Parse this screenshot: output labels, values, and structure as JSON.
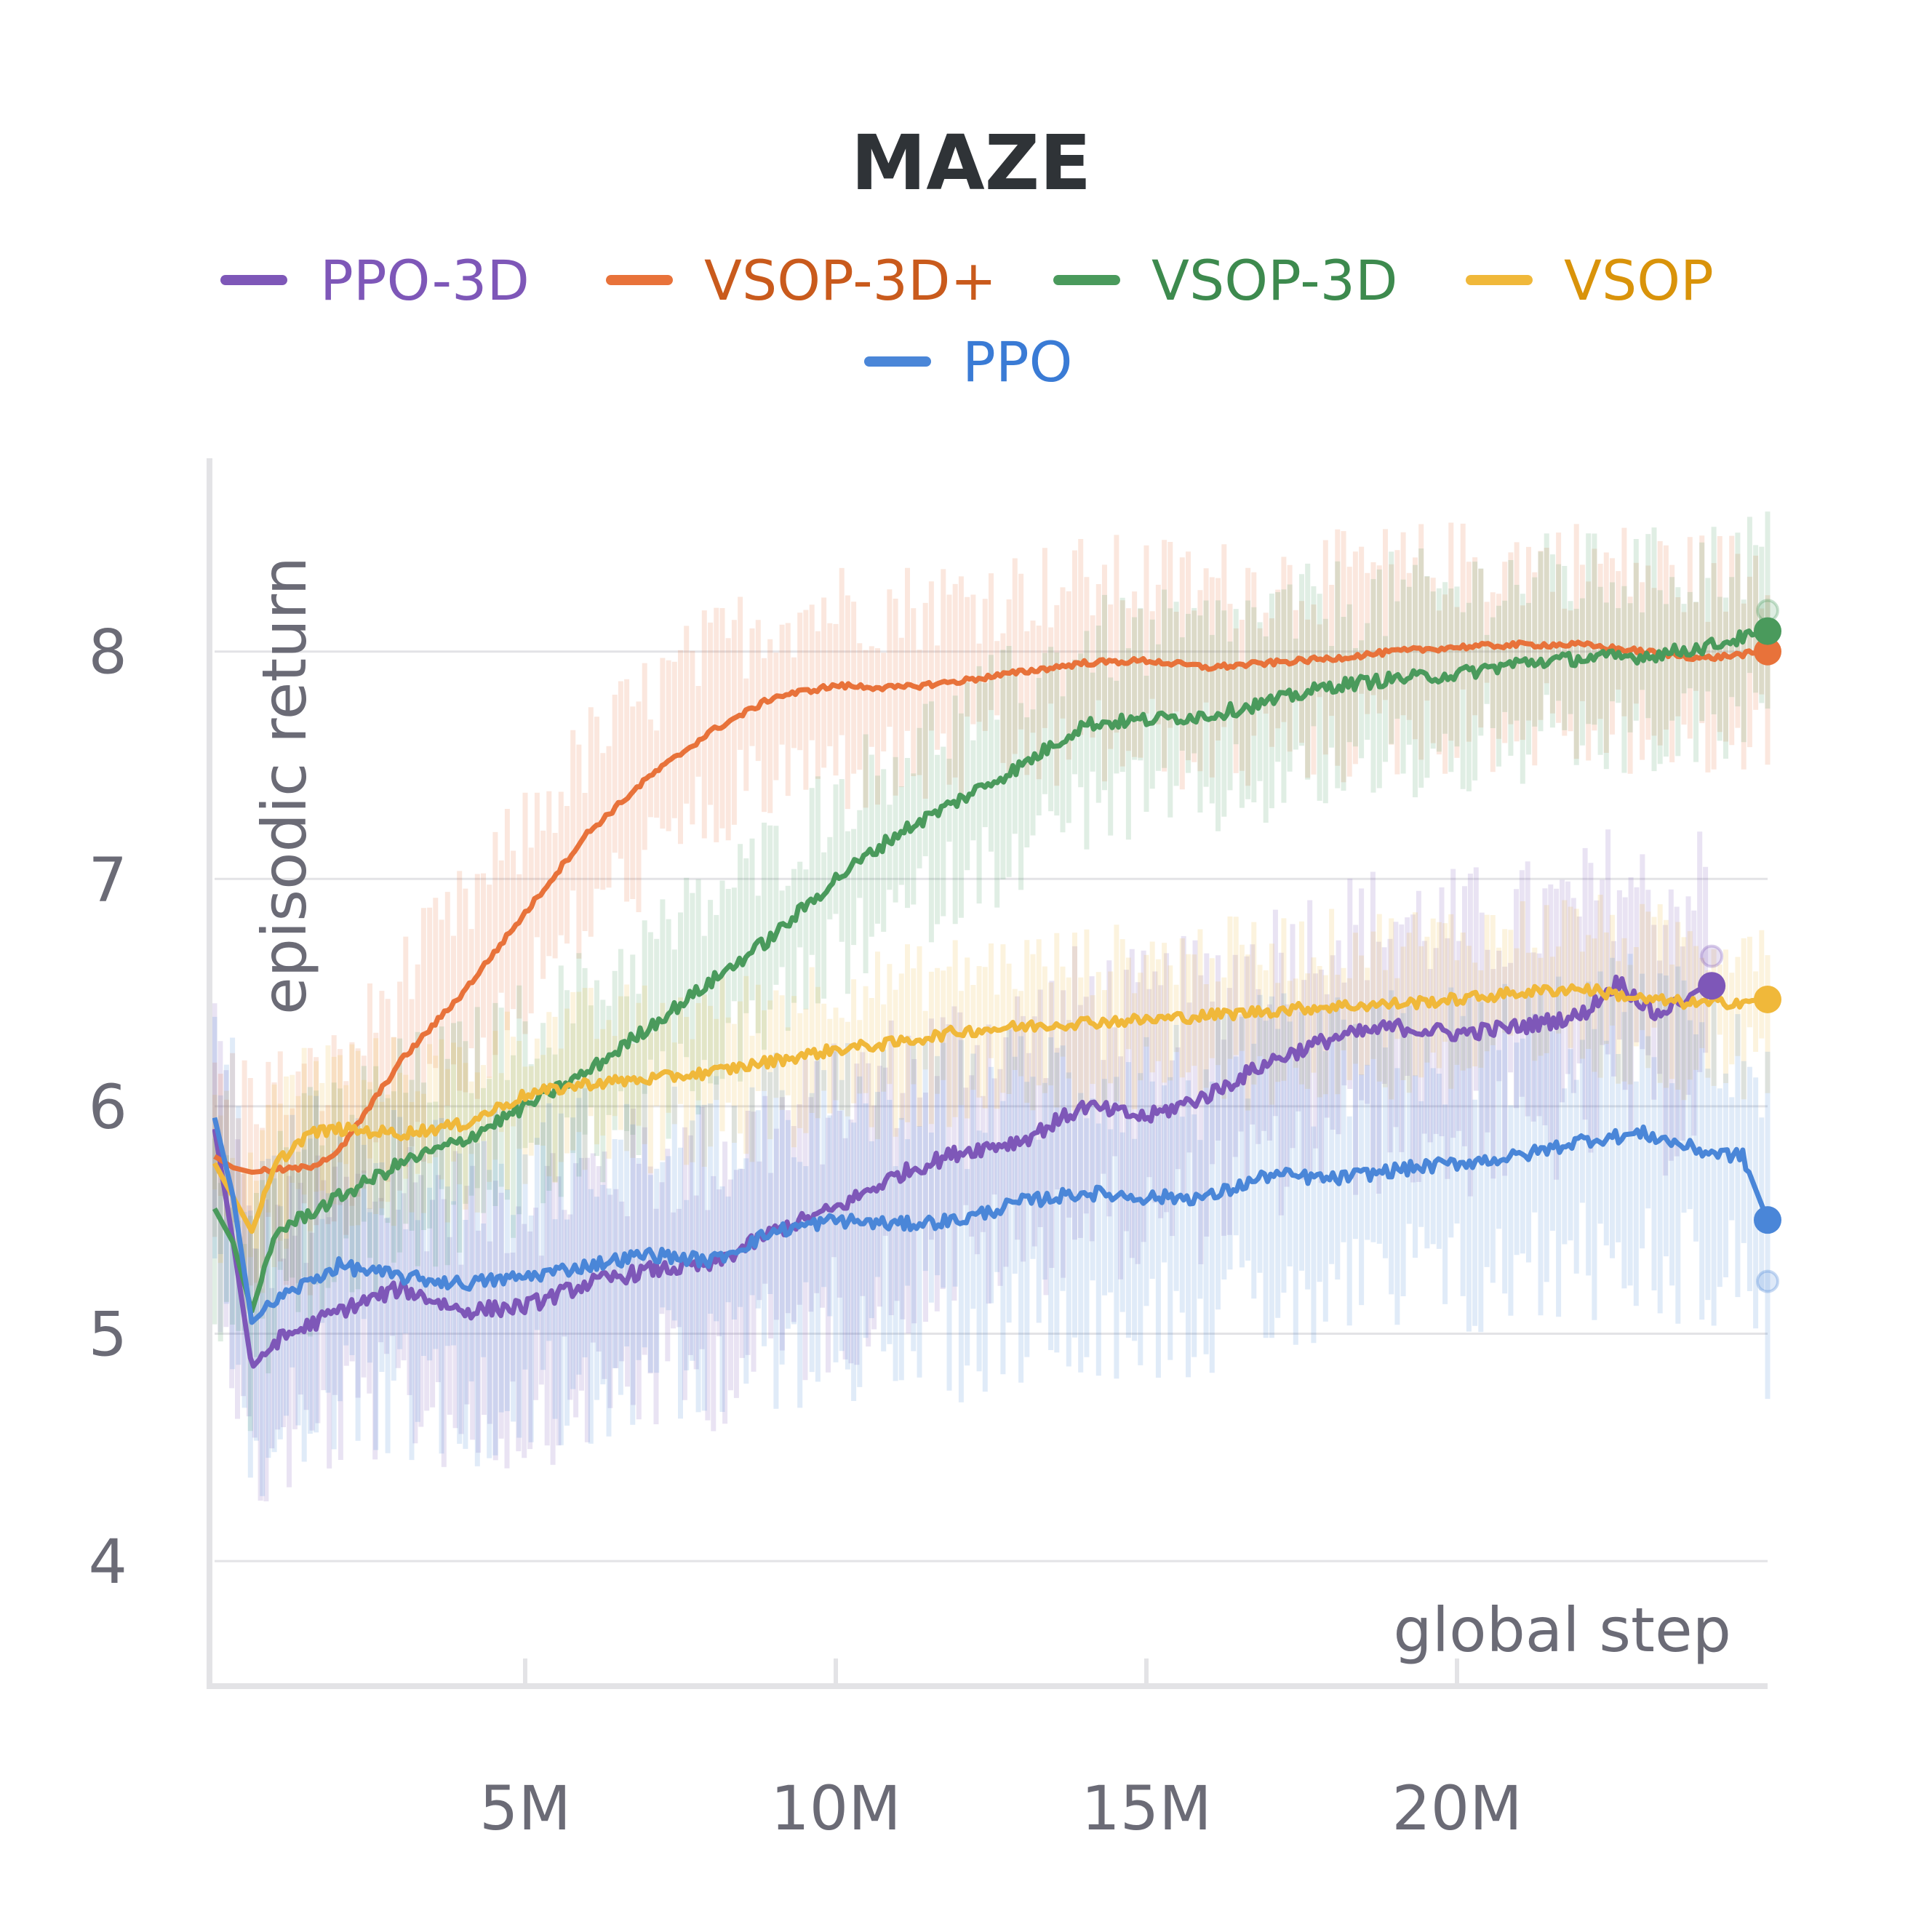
{
  "chart_data": {
    "type": "line",
    "title": "MAZE",
    "xlabel": "global step",
    "ylabel": "episodic return",
    "xlim": [
      0,
      25000000
    ],
    "ylim": [
      3.45,
      8.85
    ],
    "x_ticks": [
      5000000,
      10000000,
      15000000,
      20000000
    ],
    "x_tick_labels": [
      "5M",
      "10M",
      "15M",
      "20M"
    ],
    "y_ticks": [
      4,
      5,
      6,
      7,
      8
    ],
    "y_tick_labels": [
      "4",
      "5",
      "6",
      "7",
      "8"
    ],
    "grid": true,
    "legend_position": "top-center",
    "series": [
      {
        "name": "PPO-3D",
        "color": "#7e57b8",
        "text_color": "#7e57b8",
        "x": [
          0,
          300000,
          600000,
          1000000,
          2000000,
          3000000,
          4000000,
          5000000,
          6000000,
          7000000,
          8000000,
          9000000,
          10000000,
          11000000,
          12000000,
          13000000,
          14000000,
          15000000,
          16000000,
          17000000,
          18000000,
          19000000,
          20000000,
          21000000,
          22000000,
          22600000,
          23200000,
          24000000
        ],
        "values": [
          5.9,
          5.4,
          4.85,
          4.97,
          5.1,
          5.2,
          5.1,
          5.12,
          5.22,
          5.28,
          5.3,
          5.45,
          5.55,
          5.7,
          5.8,
          5.85,
          6.0,
          5.95,
          6.05,
          6.2,
          6.3,
          6.35,
          6.32,
          6.35,
          6.4,
          6.55,
          6.4,
          6.53
        ]
      },
      {
        "name": "VSOP-3D+",
        "color": "#e8723a",
        "text_color": "#c95a1c",
        "x": [
          0,
          300000,
          600000,
          1000000,
          1500000,
          2000000,
          2500000,
          3000000,
          4000000,
          5000000,
          6000000,
          7000000,
          8000000,
          9000000,
          10000000,
          11000000,
          12000000,
          13000000,
          14000000,
          15000000,
          16000000,
          17000000,
          18000000,
          19000000,
          20000000,
          21000000,
          22000000,
          23000000,
          24000000,
          25000000
        ],
        "values": [
          5.78,
          5.73,
          5.71,
          5.72,
          5.73,
          5.8,
          6.0,
          6.2,
          6.5,
          6.85,
          7.2,
          7.45,
          7.65,
          7.8,
          7.85,
          7.84,
          7.87,
          7.91,
          7.95,
          7.96,
          7.93,
          7.95,
          7.97,
          8.0,
          8.02,
          8.03,
          8.03,
          8.0,
          7.97,
          8.0
        ]
      },
      {
        "name": "VSOP-3D",
        "color": "#4a9a5c",
        "text_color": "#3d8a4e",
        "x": [
          0,
          300000,
          600000,
          1000000,
          2000000,
          3000000,
          4000000,
          5000000,
          6000000,
          7000000,
          8000000,
          9000000,
          10000000,
          11000000,
          12000000,
          13000000,
          14000000,
          15000000,
          16000000,
          17000000,
          18000000,
          19000000,
          20000000,
          21000000,
          22000000,
          23000000,
          24000000,
          25000000
        ],
        "values": [
          5.55,
          5.4,
          5.1,
          5.45,
          5.6,
          5.75,
          5.85,
          6.0,
          6.15,
          6.35,
          6.55,
          6.75,
          7.0,
          7.2,
          7.35,
          7.5,
          7.68,
          7.7,
          7.72,
          7.78,
          7.85,
          7.88,
          7.9,
          7.95,
          7.97,
          7.98,
          8.02,
          8.09
        ]
      },
      {
        "name": "VSOP",
        "color": "#f0b83a",
        "text_color": "#d9930a",
        "x": [
          0,
          300000,
          600000,
          1000000,
          1500000,
          2000000,
          3000000,
          4000000,
          5000000,
          6000000,
          7000000,
          8000000,
          9000000,
          10000000,
          11000000,
          12000000,
          13000000,
          14000000,
          15000000,
          16000000,
          17000000,
          18000000,
          19000000,
          20000000,
          21000000,
          22000000,
          23000000,
          24000000,
          25000000
        ],
        "values": [
          5.75,
          5.6,
          5.45,
          5.75,
          5.88,
          5.9,
          5.88,
          5.92,
          6.05,
          6.1,
          6.12,
          6.15,
          6.2,
          6.25,
          6.28,
          6.33,
          6.35,
          6.37,
          6.38,
          6.4,
          6.42,
          6.44,
          6.45,
          6.47,
          6.5,
          6.52,
          6.47,
          6.45,
          6.47
        ]
      },
      {
        "name": "PPO",
        "color": "#4a86d8",
        "text_color": "#3a7bd5",
        "x": [
          0,
          300000,
          600000,
          1000000,
          2000000,
          3000000,
          4000000,
          5000000,
          6000000,
          7000000,
          8000000,
          9000000,
          10000000,
          11000000,
          12000000,
          13000000,
          14000000,
          15000000,
          16000000,
          17000000,
          18000000,
          19000000,
          20000000,
          21000000,
          22000000,
          23000000,
          24000000,
          24600000,
          25000000
        ],
        "values": [
          5.95,
          5.6,
          5.05,
          5.15,
          5.3,
          5.25,
          5.22,
          5.25,
          5.3,
          5.35,
          5.32,
          5.45,
          5.5,
          5.48,
          5.5,
          5.58,
          5.62,
          5.6,
          5.6,
          5.7,
          5.68,
          5.72,
          5.75,
          5.78,
          5.85,
          5.88,
          5.8,
          5.78,
          5.5
        ]
      }
    ],
    "endpoint_markers": [
      {
        "series": "PPO-3D",
        "x": 24100000,
        "y": 6.53,
        "shadow_y": 6.66
      },
      {
        "series": "VSOP-3D+",
        "x": 25000000,
        "y": 8.0
      },
      {
        "series": "VSOP-3D",
        "x": 25000000,
        "y": 8.09,
        "shadow_y": 8.18
      },
      {
        "series": "VSOP",
        "x": 25000000,
        "y": 6.47
      },
      {
        "series": "PPO",
        "x": 25000000,
        "y": 5.5,
        "shadow_y": 5.23
      }
    ]
  }
}
